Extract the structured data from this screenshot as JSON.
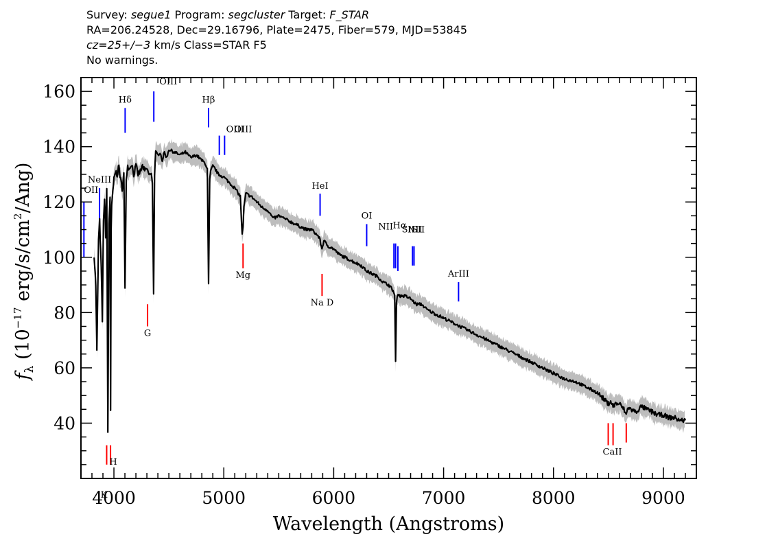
{
  "header": {
    "line1": {
      "survey_label": "Survey: ",
      "survey": "segue1",
      "program_label": " Program: ",
      "program": "segcluster",
      "target_label": " Target: ",
      "target": "F_STAR"
    },
    "line2": "RA=206.24528, Dec=29.16796, Plate=2475, Fiber=579, MJD=53845",
    "line3": {
      "cz": "cz=25+/−3",
      "rest": " km/s Class=STAR F5"
    },
    "line4": "No warnings."
  },
  "chart_data": {
    "type": "line",
    "xlabel": "Wavelength (Angstroms)",
    "ylabel": "fλ (10⁻¹⁷ erg/s/cm²/Ang)",
    "xlim": [
      3700,
      9300
    ],
    "ylim": [
      20,
      165
    ],
    "xticks": [
      4000,
      5000,
      6000,
      7000,
      8000,
      9000
    ],
    "yticks": [
      40,
      60,
      80,
      100,
      120,
      140,
      160
    ],
    "colors": {
      "flux": "#000000",
      "error_band": "#bdbdbd",
      "emission": "#0000ff",
      "absorption": "#ff0000"
    },
    "series": [
      {
        "x": [
          3820,
          3835,
          3845,
          3860,
          3870,
          3885,
          3895,
          3905,
          3915,
          3925,
          3935,
          3945,
          3955,
          3965,
          3970,
          3975,
          3980,
          3990,
          4000,
          4015,
          4030,
          4045,
          4060,
          4075,
          4090,
          4101,
          4112,
          4125,
          4140,
          4160,
          4180,
          4200,
          4220,
          4240,
          4260,
          4280,
          4300,
          4320,
          4340,
          4350,
          4361,
          4370,
          4380,
          4400,
          4420,
          4440,
          4460,
          4480,
          4500,
          4550,
          4600,
          4650,
          4700,
          4750,
          4800,
          4830,
          4850,
          4861,
          4872,
          4880,
          4900,
          4920,
          4950,
          5000,
          5050,
          5100,
          5150,
          5167,
          5175,
          5183,
          5200,
          5250,
          5300,
          5350,
          5400,
          5450,
          5500,
          5550,
          5600,
          5650,
          5700,
          5750,
          5800,
          5850,
          5870,
          5893,
          5910,
          5950,
          6000,
          6050,
          6100,
          6150,
          6200,
          6250,
          6300,
          6350,
          6400,
          6450,
          6500,
          6540,
          6555,
          6563,
          6571,
          6585,
          6600,
          6650,
          6700,
          6750,
          6800,
          6850,
          6900,
          7000,
          7100,
          7200,
          7300,
          7400,
          7500,
          7600,
          7700,
          7800,
          7900,
          8000,
          8100,
          8200,
          8300,
          8400,
          8450,
          8498,
          8520,
          8542,
          8560,
          8600,
          8640,
          8662,
          8680,
          8700,
          8750,
          8800,
          8850,
          8900,
          8950,
          9000,
          9050,
          9100,
          9150,
          9200
        ],
        "y": [
          101,
          90,
          66,
          106,
          113,
          96,
          77,
          114,
          120,
          108,
          125,
          37,
          112,
          122,
          45,
          110,
          118,
          124,
          128,
          131,
          130,
          133,
          128,
          125,
          130,
          88,
          129,
          133,
          132,
          134,
          130,
          133,
          130,
          131,
          133,
          131,
          132,
          130,
          130,
          127,
          87,
          130,
          138,
          137,
          138,
          135,
          138,
          136,
          139,
          138,
          137,
          138,
          136,
          137,
          135,
          134,
          132,
          90,
          128,
          131,
          133,
          132,
          130,
          129,
          127,
          125,
          122,
          108,
          111,
          118,
          123,
          122,
          120,
          118,
          117,
          114,
          115,
          114,
          113,
          112,
          111,
          110,
          110,
          108,
          107,
          103,
          106,
          104,
          103,
          101,
          100,
          99,
          98,
          97,
          95,
          94,
          93,
          91,
          90,
          88,
          86,
          62,
          84,
          87,
          86,
          86,
          85,
          83,
          83,
          81,
          80,
          78,
          76,
          74,
          72,
          70,
          68,
          66,
          64,
          62,
          60,
          58,
          56,
          55,
          53,
          51,
          49,
          47,
          48,
          46,
          47,
          47,
          45,
          43,
          46,
          45,
          44,
          46,
          45,
          44,
          43,
          43,
          42,
          42,
          41,
          41
        ]
      }
    ],
    "emission_lines": [
      {
        "label": "OII",
        "x": 3727
      },
      {
        "label": "NeIII",
        "x": 3869
      },
      {
        "label": "Hδ",
        "x": 4102
      },
      {
        "label": "OIII",
        "x": 4363
      },
      {
        "label": "Hβ",
        "x": 4861
      },
      {
        "label": "OIII",
        "x": 4959
      },
      {
        "label": "OIII",
        "x": 5007
      },
      {
        "label": "HeI",
        "x": 5876
      },
      {
        "label": "OI",
        "x": 6300
      },
      {
        "label": "NII",
        "x": 6548
      },
      {
        "label": "Hα",
        "x": 6563
      },
      {
        "label": "NII",
        "x": 6584
      },
      {
        "label": "SII",
        "x": 6717
      },
      {
        "label": "SII",
        "x": 6731
      },
      {
        "label": "ArIII",
        "x": 7136
      }
    ],
    "absorption_lines": [
      {
        "label": "K",
        "x": 3934
      },
      {
        "label": "H",
        "x": 3969
      },
      {
        "label": "G",
        "x": 4306
      },
      {
        "label": "Mg",
        "x": 5175
      },
      {
        "label": "Na  D",
        "x": 5894
      },
      {
        "label": "CaII",
        "x": 8498
      },
      {
        "label": "CaII",
        "x": 8542
      },
      {
        "label": "CaII",
        "x": 8662
      }
    ]
  }
}
